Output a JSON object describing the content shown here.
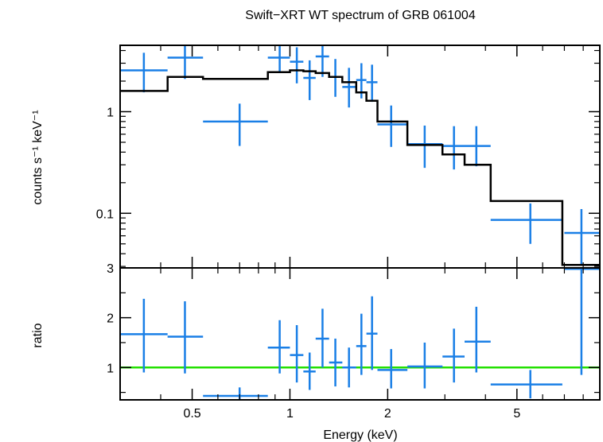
{
  "chart_data": {
    "type": "line",
    "title": "Swift−XRT WT spectrum of GRB 061004",
    "xlabel": "Energy (keV)",
    "x_scale": "log",
    "xlim": [
      0.3,
      9.0
    ],
    "x_ticks": [
      {
        "value": 0.5,
        "label": "0.5"
      },
      {
        "value": 1,
        "label": "1"
      },
      {
        "value": 2,
        "label": "2"
      },
      {
        "value": 5,
        "label": "5"
      }
    ],
    "panels": [
      {
        "name": "spectrum",
        "ylabel": "counts s⁻¹ keV⁻¹",
        "y_scale": "log",
        "ylim": [
          0.029,
          4.5
        ],
        "y_ticks": [
          {
            "value": 1,
            "label": "1"
          },
          {
            "value": 0.1,
            "label": "0.1"
          }
        ],
        "data": {
          "name": "data",
          "color": "#1a7fe6",
          "points": [
            {
              "x": 0.355,
              "y": 2.55,
              "xlo": 0.3,
              "xhi": 0.42,
              "ylo": 1.55,
              "yhi": 3.8
            },
            {
              "x": 0.475,
              "y": 3.4,
              "xlo": 0.42,
              "xhi": 0.54,
              "ylo": 2.1,
              "yhi": 4.5
            },
            {
              "x": 0.7,
              "y": 0.8,
              "xlo": 0.54,
              "xhi": 0.855,
              "ylo": 0.46,
              "yhi": 1.2
            },
            {
              "x": 0.93,
              "y": 3.4,
              "xlo": 0.855,
              "xhi": 1.0,
              "ylo": 2.4,
              "yhi": 4.5
            },
            {
              "x": 1.05,
              "y": 3.1,
              "xlo": 1.0,
              "xhi": 1.1,
              "ylo": 1.9,
              "yhi": 4.3
            },
            {
              "x": 1.15,
              "y": 2.15,
              "xlo": 1.1,
              "xhi": 1.2,
              "ylo": 1.3,
              "yhi": 3.2
            },
            {
              "x": 1.26,
              "y": 3.5,
              "xlo": 1.2,
              "xhi": 1.32,
              "ylo": 2.2,
              "yhi": 4.5
            },
            {
              "x": 1.38,
              "y": 2.2,
              "xlo": 1.32,
              "xhi": 1.45,
              "ylo": 1.4,
              "yhi": 3.3
            },
            {
              "x": 1.52,
              "y": 1.75,
              "xlo": 1.45,
              "xhi": 1.6,
              "ylo": 1.1,
              "yhi": 2.7
            },
            {
              "x": 1.66,
              "y": 2.05,
              "xlo": 1.6,
              "xhi": 1.72,
              "ylo": 1.35,
              "yhi": 3.0
            },
            {
              "x": 1.79,
              "y": 1.95,
              "xlo": 1.72,
              "xhi": 1.86,
              "ylo": 1.25,
              "yhi": 2.9
            },
            {
              "x": 2.05,
              "y": 0.75,
              "xlo": 1.86,
              "xhi": 2.3,
              "ylo": 0.45,
              "yhi": 1.15
            },
            {
              "x": 2.6,
              "y": 0.48,
              "xlo": 2.3,
              "xhi": 2.95,
              "ylo": 0.28,
              "yhi": 0.73
            },
            {
              "x": 3.2,
              "y": 0.46,
              "xlo": 2.95,
              "xhi": 3.45,
              "ylo": 0.27,
              "yhi": 0.72
            },
            {
              "x": 3.75,
              "y": 0.46,
              "xlo": 3.45,
              "xhi": 4.15,
              "ylo": 0.29,
              "yhi": 0.72
            },
            {
              "x": 5.5,
              "y": 0.086,
              "xlo": 4.15,
              "xhi": 6.9,
              "ylo": 0.05,
              "yhi": 0.125
            },
            {
              "x": 7.9,
              "y": 0.064,
              "xlo": 7.0,
              "xhi": 9.0,
              "ylo": 0.031,
              "yhi": 0.11
            }
          ]
        },
        "model": {
          "name": "model",
          "color": "#000000",
          "steps": [
            {
              "xlo": 0.3,
              "xhi": 0.42,
              "y": 1.6
            },
            {
              "xlo": 0.42,
              "xhi": 0.54,
              "y": 2.2
            },
            {
              "xlo": 0.54,
              "xhi": 0.855,
              "y": 2.1
            },
            {
              "xlo": 0.855,
              "xhi": 1.0,
              "y": 2.45
            },
            {
              "xlo": 1.0,
              "xhi": 1.1,
              "y": 2.55
            },
            {
              "xlo": 1.1,
              "xhi": 1.2,
              "y": 2.5
            },
            {
              "xlo": 1.2,
              "xhi": 1.32,
              "y": 2.4
            },
            {
              "xlo": 1.32,
              "xhi": 1.45,
              "y": 2.2
            },
            {
              "xlo": 1.45,
              "xhi": 1.6,
              "y": 1.95
            },
            {
              "xlo": 1.6,
              "xhi": 1.72,
              "y": 1.55
            },
            {
              "xlo": 1.72,
              "xhi": 1.86,
              "y": 1.28
            },
            {
              "xlo": 1.86,
              "xhi": 2.3,
              "y": 0.8
            },
            {
              "xlo": 2.3,
              "xhi": 2.95,
              "y": 0.47
            },
            {
              "xlo": 2.95,
              "xhi": 3.45,
              "y": 0.38
            },
            {
              "xlo": 3.45,
              "xhi": 4.15,
              "y": 0.3
            },
            {
              "xlo": 4.15,
              "xhi": 6.9,
              "y": 0.132
            },
            {
              "xlo": 6.9,
              "xhi": 9.0,
              "y": 0.031
            }
          ]
        }
      },
      {
        "name": "ratio",
        "ylabel": "ratio",
        "y_scale": "linear",
        "ylim": [
          0.35,
          3.0
        ],
        "y_ticks": [
          {
            "value": 1,
            "label": "1"
          },
          {
            "value": 2,
            "label": "2"
          },
          {
            "value": 3,
            "label": "3"
          }
        ],
        "reference_line": {
          "y": 1,
          "color": "#22e000"
        },
        "data": {
          "name": "ratio",
          "color": "#1a7fe6",
          "points": [
            {
              "x": 0.355,
              "y": 1.67,
              "xlo": 0.3,
              "xhi": 0.42,
              "ylo": 0.9,
              "yhi": 2.38
            },
            {
              "x": 0.475,
              "y": 1.62,
              "xlo": 0.42,
              "xhi": 0.54,
              "ylo": 0.88,
              "yhi": 2.33
            },
            {
              "x": 0.7,
              "y": 0.43,
              "xlo": 0.54,
              "xhi": 0.855,
              "ylo": 0.35,
              "yhi": 0.6
            },
            {
              "x": 0.93,
              "y": 1.4,
              "xlo": 0.855,
              "xhi": 1.0,
              "ylo": 0.88,
              "yhi": 1.95
            },
            {
              "x": 1.05,
              "y": 1.25,
              "xlo": 1.0,
              "xhi": 1.1,
              "ylo": 0.7,
              "yhi": 1.85
            },
            {
              "x": 1.15,
              "y": 0.92,
              "xlo": 1.1,
              "xhi": 1.2,
              "ylo": 0.55,
              "yhi": 1.3
            },
            {
              "x": 1.26,
              "y": 1.58,
              "xlo": 1.2,
              "xhi": 1.32,
              "ylo": 1.0,
              "yhi": 2.18
            },
            {
              "x": 1.38,
              "y": 1.1,
              "xlo": 1.32,
              "xhi": 1.45,
              "ylo": 0.62,
              "yhi": 1.58
            },
            {
              "x": 1.52,
              "y": 1.0,
              "xlo": 1.45,
              "xhi": 1.6,
              "ylo": 0.6,
              "yhi": 1.4
            },
            {
              "x": 1.66,
              "y": 1.43,
              "xlo": 1.6,
              "xhi": 1.72,
              "ylo": 0.85,
              "yhi": 2.08
            },
            {
              "x": 1.79,
              "y": 1.68,
              "xlo": 1.72,
              "xhi": 1.86,
              "ylo": 0.95,
              "yhi": 2.43
            },
            {
              "x": 2.05,
              "y": 0.95,
              "xlo": 1.86,
              "xhi": 2.3,
              "ylo": 0.58,
              "yhi": 1.37
            },
            {
              "x": 2.6,
              "y": 1.02,
              "xlo": 2.3,
              "xhi": 2.95,
              "ylo": 0.58,
              "yhi": 1.5
            },
            {
              "x": 3.2,
              "y": 1.22,
              "xlo": 2.95,
              "xhi": 3.45,
              "ylo": 0.7,
              "yhi": 1.78
            },
            {
              "x": 3.75,
              "y": 1.52,
              "xlo": 3.45,
              "xhi": 4.15,
              "ylo": 0.9,
              "yhi": 2.22
            },
            {
              "x": 5.5,
              "y": 0.66,
              "xlo": 4.15,
              "xhi": 6.9,
              "ylo": 0.38,
              "yhi": 0.95
            },
            {
              "x": 7.9,
              "y": 2.98,
              "xlo": 7.0,
              "xhi": 9.0,
              "ylo": 0.85,
              "yhi": 3.0
            }
          ]
        }
      }
    ]
  }
}
